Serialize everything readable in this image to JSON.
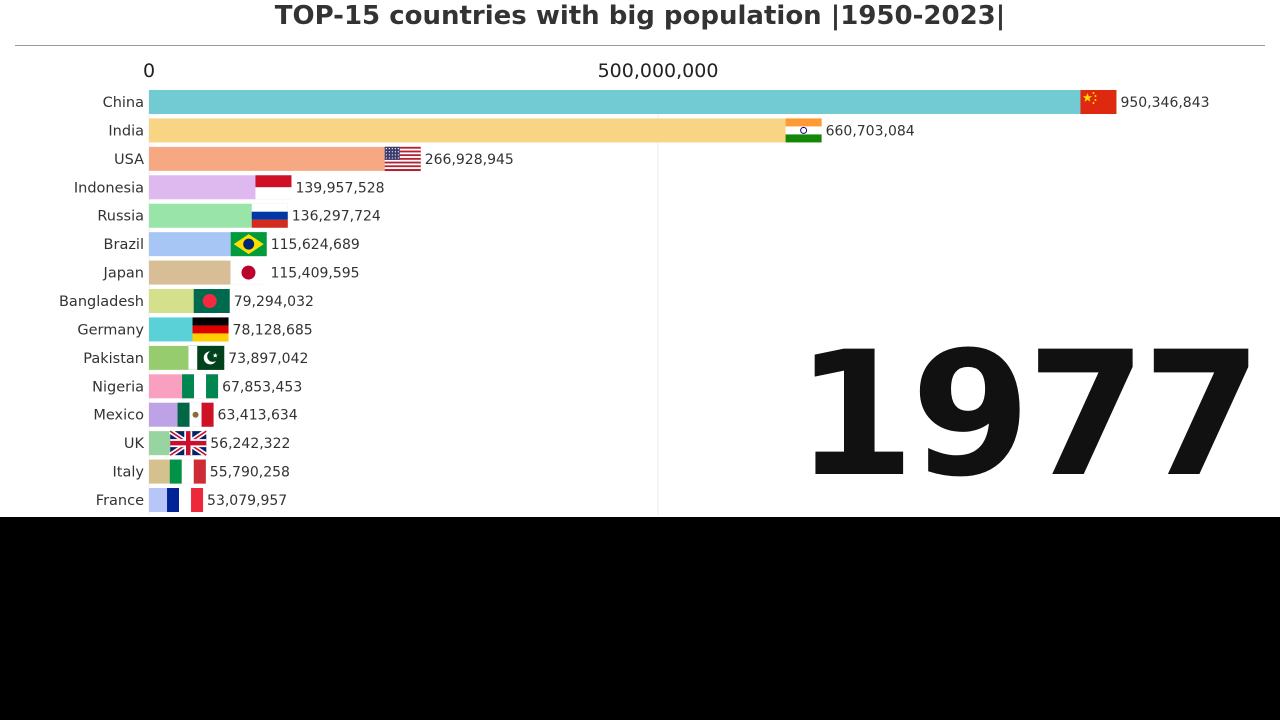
{
  "chart_data": {
    "type": "bar",
    "orientation": "horizontal",
    "title": "TOP-15 countries with big population |1950-2023|",
    "year": "1977",
    "categories": [
      "China",
      "India",
      "USA",
      "Indonesia",
      "Russia",
      "Brazil",
      "Japan",
      "Bangladesh",
      "Germany",
      "Pakistan",
      "Nigeria",
      "Mexico",
      "UK",
      "Italy",
      "France"
    ],
    "values": [
      950346843,
      660703084,
      266928945,
      139957528,
      136297724,
      115624689,
      115409595,
      79294032,
      78128685,
      73897042,
      67853453,
      63413634,
      56242322,
      55790258,
      53079957
    ],
    "value_labels": [
      "950,346,843",
      "660,703,084",
      "266,928,945",
      "139,957,528",
      "136,297,724",
      "115,624,689",
      "115,409,595",
      "79,294,032",
      "78,128,685",
      "73,897,042",
      "67,853,453",
      "63,413,634",
      "56,242,322",
      "55,790,258",
      "53,079,957"
    ],
    "bar_colors": [
      "#72cbd3",
      "#f7d585",
      "#f5a882",
      "#ddb9f0",
      "#98e4a9",
      "#a8c6f5",
      "#d7be96",
      "#d4e08b",
      "#5ad1d6",
      "#96cc6e",
      "#f9a0c1",
      "#bda2e5",
      "#98d49f",
      "#d4c18e",
      "#b7c5f8"
    ],
    "flags": [
      "china-flag",
      "india-flag",
      "usa-flag",
      "indonesia-flag",
      "russia-flag",
      "brazil-flag",
      "japan-flag",
      "bangladesh-flag",
      "germany-flag",
      "pakistan-flag",
      "nigeria-flag",
      "mexico-flag",
      "uk-flag",
      "italy-flag",
      "france-flag"
    ],
    "xaxis": {
      "ticks": [
        0,
        500000000
      ],
      "tick_labels": [
        "0",
        "500,000,000"
      ],
      "position": "top",
      "range": [
        0,
        1000000000
      ]
    },
    "grid": true,
    "legend": "none"
  }
}
